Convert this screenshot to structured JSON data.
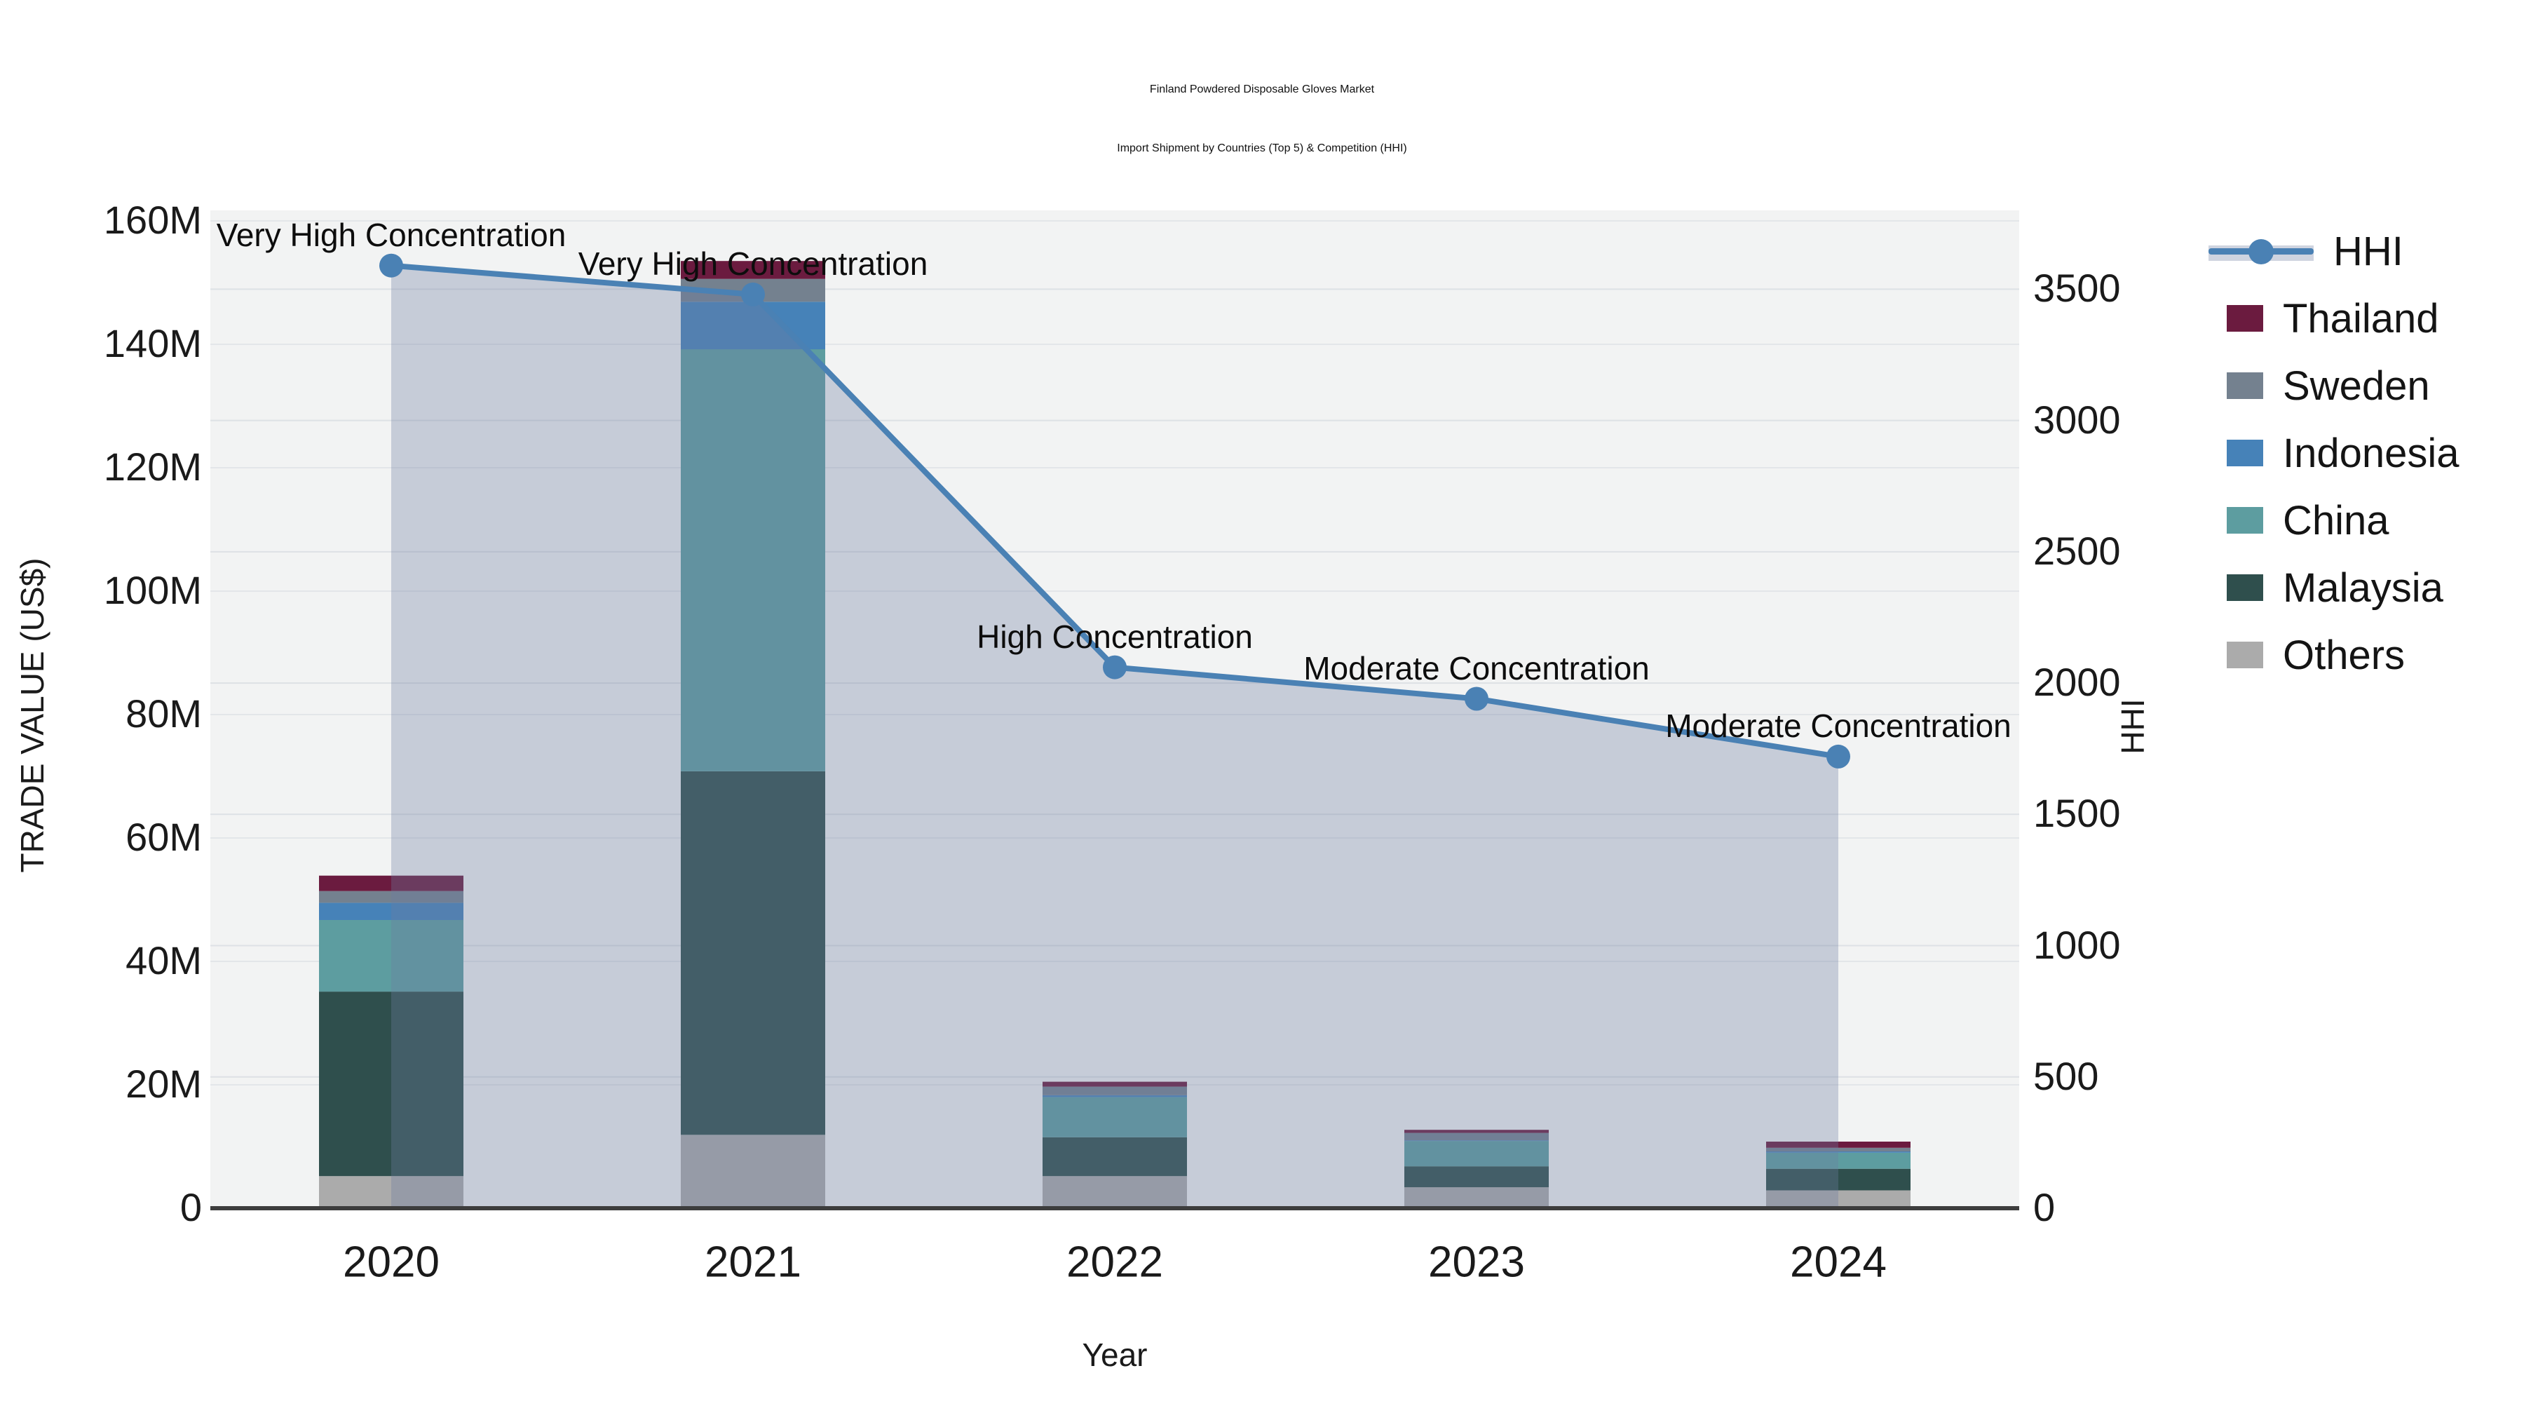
{
  "title": {
    "line1": "Finland Powdered Disposable Gloves Market",
    "line2": "Import Shipment by Countries (Top 5) & Competition (HHI)"
  },
  "axes": {
    "x": {
      "title": "Year",
      "categories": [
        "2020",
        "2021",
        "2022",
        "2023",
        "2024"
      ]
    },
    "y_left": {
      "title": "TRADE VALUE (US$)",
      "tick_labels": [
        "0",
        "20M",
        "40M",
        "60M",
        "80M",
        "100M",
        "120M",
        "140M",
        "160M"
      ]
    },
    "y_right": {
      "title": "HHI",
      "tick_labels": [
        "0",
        "500",
        "1000",
        "1500",
        "2000",
        "2500",
        "3000",
        "3500"
      ]
    }
  },
  "legend": {
    "items": [
      {
        "label": "HHI",
        "type": "line",
        "color": "#4a81b4"
      },
      {
        "label": "Thailand",
        "type": "swatch",
        "color": "#6b1b3f"
      },
      {
        "label": "Sweden",
        "type": "swatch",
        "color": "#74818f"
      },
      {
        "label": "Indonesia",
        "type": "swatch",
        "color": "#4682b8"
      },
      {
        "label": "China",
        "type": "swatch",
        "color": "#5d9da0"
      },
      {
        "label": "Malaysia",
        "type": "swatch",
        "color": "#2f4f4d"
      },
      {
        "label": "Others",
        "type": "swatch",
        "color": "#ababab"
      }
    ]
  },
  "annotations": [
    {
      "text": "Very High Concentration",
      "year": "2020"
    },
    {
      "text": "Very High Concentration",
      "year": "2021"
    },
    {
      "text": "High Concentration",
      "year": "2022"
    },
    {
      "text": "Moderate Concentration",
      "year": "2023"
    },
    {
      "text": "Moderate Concentration",
      "year": "2024"
    }
  ],
  "chart_data": {
    "type": "combo",
    "categories": [
      "2020",
      "2021",
      "2022",
      "2023",
      "2024"
    ],
    "bar_unit": "USD millions",
    "stack_order_bottom_to_top": [
      "Others",
      "Malaysia",
      "China",
      "Indonesia",
      "Sweden",
      "Thailand"
    ],
    "series": [
      {
        "name": "Thailand",
        "type": "bar",
        "color": "#6b1b3f",
        "values": [
          2.5,
          2.9,
          0.8,
          0.5,
          1.0
        ]
      },
      {
        "name": "Sweden",
        "type": "bar",
        "color": "#74818f",
        "values": [
          1.9,
          3.7,
          1.4,
          1.2,
          0.6
        ]
      },
      {
        "name": "Indonesia",
        "type": "bar",
        "color": "#4682b8",
        "values": [
          2.8,
          7.7,
          0.3,
          0.1,
          0.2
        ]
      },
      {
        "name": "China",
        "type": "bar",
        "color": "#5d9da0",
        "values": [
          11.6,
          68.4,
          6.5,
          4.1,
          2.6
        ]
      },
      {
        "name": "Malaysia",
        "type": "bar",
        "color": "#2f4f4d",
        "values": [
          29.9,
          58.9,
          6.3,
          3.4,
          3.5
        ]
      },
      {
        "name": "Others",
        "type": "bar",
        "color": "#ababab",
        "values": [
          5.2,
          11.9,
          5.2,
          3.4,
          2.9
        ]
      }
    ],
    "bar_totals_millions": [
      53.9,
      153.5,
      20.5,
      12.7,
      10.8
    ],
    "line_series": {
      "name": "HHI",
      "color": "#4a81b4",
      "fill": "rgba(108,125,160,0.33)",
      "values": [
        3590,
        3480,
        2060,
        1940,
        1720
      ]
    },
    "xlabel": "Year",
    "ylabel_left": "TRADE VALUE (US$)",
    "ylabel_right": "HHI",
    "y_left_range_millions": [
      0,
      160
    ],
    "y_right_range": [
      0,
      3800
    ],
    "grid": true,
    "legend_position": "right",
    "plot_background": "#f2f3f3",
    "gridline_color": "#e3e6e9",
    "axis_line_color": "#3d3d3d"
  }
}
